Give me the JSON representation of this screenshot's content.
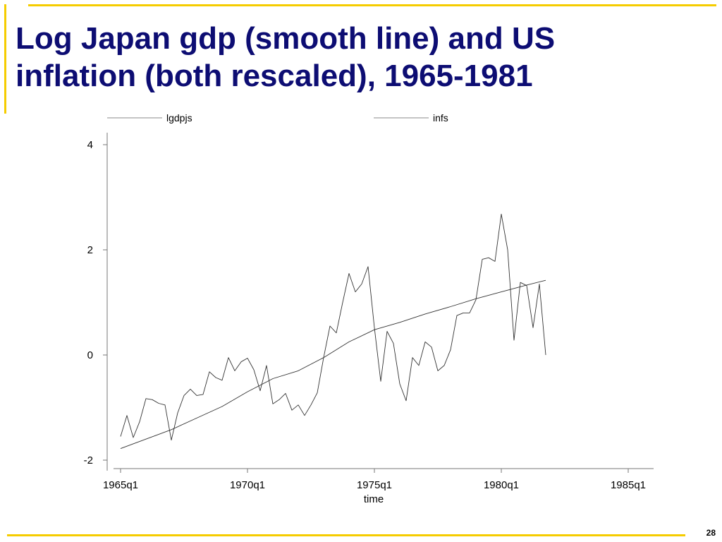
{
  "slide": {
    "title_line1": "Log Japan gdp (smooth line) and US",
    "title_line2": "inflation (both rescaled), 1965-1981",
    "page_number": "28",
    "accent_color": "#f5cc00",
    "title_color": "#0d0d73"
  },
  "chart_data": {
    "type": "line",
    "title": "",
    "xlabel": "time",
    "ylabel": "",
    "xlim": [
      1965.0,
      1986.0
    ],
    "ylim": [
      -2.2,
      4.2
    ],
    "x_ticks": [
      {
        "value": 1965.0,
        "label": "1965q1"
      },
      {
        "value": 1970.0,
        "label": "1970q1"
      },
      {
        "value": 1975.0,
        "label": "1975q1"
      },
      {
        "value": 1980.0,
        "label": "1980q1"
      },
      {
        "value": 1985.0,
        "label": "1985q1"
      }
    ],
    "y_ticks": [
      {
        "value": 4,
        "label": "4"
      },
      {
        "value": 2,
        "label": "2"
      },
      {
        "value": 0,
        "label": "0"
      },
      {
        "value": -2,
        "label": "-2"
      }
    ],
    "grid": false,
    "legend_position": "top",
    "series": [
      {
        "name": "lgdpjs",
        "color": "#333333",
        "x": [
          1965.0,
          1966.0,
          1967.0,
          1968.0,
          1969.0,
          1970.0,
          1971.0,
          1972.0,
          1973.0,
          1974.0,
          1975.0,
          1976.0,
          1977.0,
          1978.0,
          1979.0,
          1980.0,
          1981.0,
          1981.75
        ],
        "values": [
          -1.78,
          -1.6,
          -1.42,
          -1.2,
          -0.98,
          -0.7,
          -0.45,
          -0.3,
          -0.05,
          0.25,
          0.48,
          0.62,
          0.78,
          0.92,
          1.07,
          1.2,
          1.33,
          1.42
        ]
      },
      {
        "name": "infs",
        "color": "#333333",
        "x": [
          1965.0,
          1965.25,
          1965.5,
          1965.75,
          1966.0,
          1966.25,
          1966.5,
          1966.75,
          1967.0,
          1967.25,
          1967.5,
          1967.75,
          1968.0,
          1968.25,
          1968.5,
          1968.75,
          1969.0,
          1969.25,
          1969.5,
          1969.75,
          1970.0,
          1970.25,
          1970.5,
          1970.75,
          1971.0,
          1971.25,
          1971.5,
          1971.75,
          1972.0,
          1972.25,
          1972.5,
          1972.75,
          1973.0,
          1973.25,
          1973.5,
          1973.75,
          1974.0,
          1974.25,
          1974.5,
          1974.75,
          1975.0,
          1975.25,
          1975.5,
          1975.75,
          1976.0,
          1976.25,
          1976.5,
          1976.75,
          1977.0,
          1977.25,
          1977.5,
          1977.75,
          1978.0,
          1978.25,
          1978.5,
          1978.75,
          1979.0,
          1979.25,
          1979.5,
          1979.75,
          1980.0,
          1980.25,
          1980.5,
          1980.75,
          1981.0,
          1981.25,
          1981.5,
          1981.75
        ],
        "values": [
          -1.55,
          -1.15,
          -1.57,
          -1.27,
          -0.83,
          -0.85,
          -0.92,
          -0.95,
          -1.62,
          -1.1,
          -0.77,
          -0.65,
          -0.77,
          -0.75,
          -0.32,
          -0.43,
          -0.48,
          -0.05,
          -0.3,
          -0.13,
          -0.06,
          -0.28,
          -0.68,
          -0.2,
          -0.93,
          -0.85,
          -0.73,
          -1.05,
          -0.95,
          -1.15,
          -0.95,
          -0.72,
          -0.05,
          0.55,
          0.42,
          1.0,
          1.55,
          1.2,
          1.35,
          1.68,
          0.52,
          -0.5,
          0.45,
          0.22,
          -0.55,
          -0.87,
          -0.05,
          -0.2,
          0.25,
          0.15,
          -0.3,
          -0.2,
          0.1,
          0.75,
          0.8,
          0.8,
          1.05,
          1.82,
          1.85,
          1.78,
          2.68,
          2.0,
          0.28,
          1.38,
          1.32,
          0.52,
          1.35,
          0.0
        ]
      }
    ]
  }
}
